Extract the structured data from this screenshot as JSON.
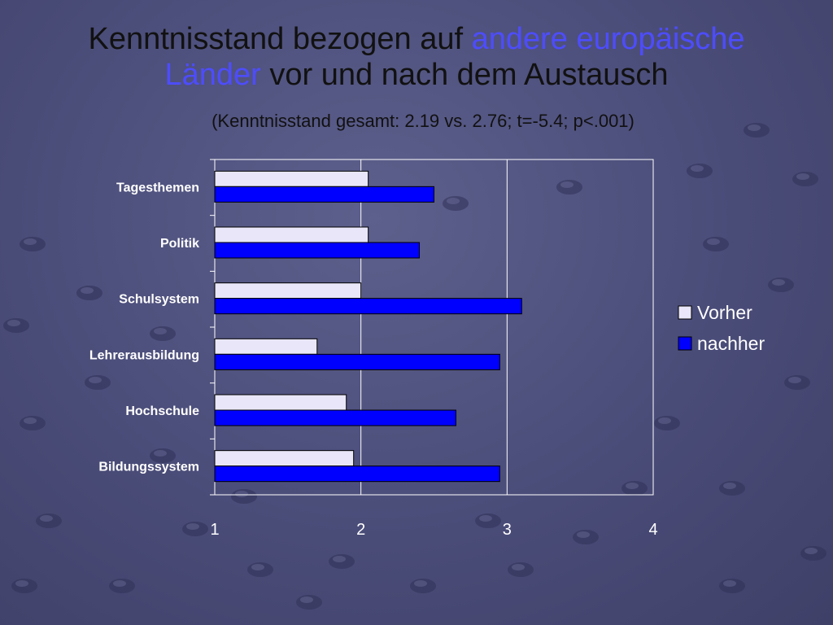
{
  "slide": {
    "title_part1": "Kenntnisstand bezogen auf ",
    "title_highlight1": "andere europäische",
    "title_highlight2": "Länder",
    "title_part2": " vor und nach dem Austausch",
    "subtitle": "(Kenntnisstand gesamt: 2.19 vs. 2.76; t=-5.4; p<.001)"
  },
  "colors": {
    "vorher": "#e8e6f8",
    "nachher": "#0000ff",
    "title_highlight": "#4d4dff"
  },
  "chart_data": {
    "type": "bar",
    "orientation": "horizontal",
    "categories": [
      "Tagesthemen",
      "Politik",
      "Schulsystem",
      "Lehrerausbildung",
      "Hochschule",
      "Bildungssystem"
    ],
    "series": [
      {
        "name": "Vorher",
        "values": [
          2.05,
          2.05,
          2.0,
          1.7,
          1.9,
          1.95
        ]
      },
      {
        "name": "nachher",
        "values": [
          2.5,
          2.4,
          3.1,
          2.95,
          2.65,
          2.95
        ]
      }
    ],
    "xlim": [
      1,
      4
    ],
    "xticks": [
      "1",
      "2",
      "3",
      "4"
    ],
    "grid": true,
    "legend_position": "right"
  }
}
